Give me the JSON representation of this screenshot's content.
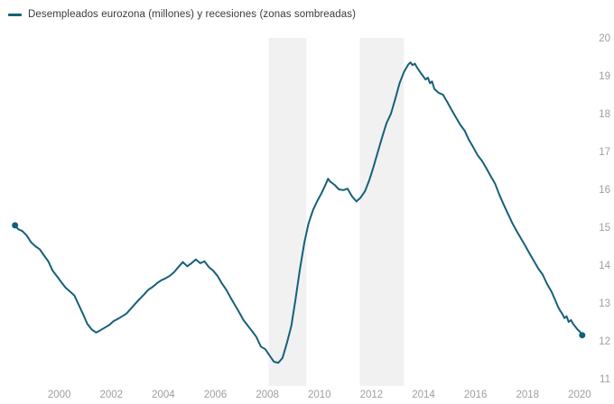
{
  "legend": {
    "label": "Desempleados eurozona (millones) y recesiones (zonas sombreadas)"
  },
  "colors": {
    "line": "#15607a",
    "recession_band": "#f1f1f1",
    "tick_text": "#9e9e9e",
    "legend_text": "#3a3a3a",
    "background": "#ffffff"
  },
  "chart_data": {
    "type": "line",
    "title": "Desempleados eurozona (millones) y recesiones (zonas sombreadas)",
    "xlabel": "",
    "ylabel": "",
    "grid": false,
    "legend_position": "top-left",
    "y_axis_side": "right",
    "xlim": [
      1998.0,
      2020.35
    ],
    "ylim": [
      11,
      20
    ],
    "x_ticks": [
      2000,
      2002,
      2004,
      2006,
      2008,
      2010,
      2012,
      2014,
      2016,
      2018,
      2020
    ],
    "x_tick_labels": [
      "2000",
      "2002",
      "2004",
      "2006",
      "2008",
      "2010",
      "2012",
      "2014",
      "2016",
      "2018",
      "2020"
    ],
    "y_ticks": [
      20,
      19,
      18,
      17,
      16,
      15,
      14,
      13,
      12,
      11
    ],
    "y_tick_labels": [
      "20",
      "19",
      "18",
      "17",
      "16",
      "15",
      "14",
      "13",
      "12",
      "11"
    ],
    "recessions": [
      {
        "start": 2008.05,
        "end": 2009.5
      },
      {
        "start": 2011.55,
        "end": 2013.25
      }
    ],
    "endpoint_markers": true,
    "series": [
      {
        "name": "Desempleados eurozona (millones)",
        "points": [
          [
            1998.3,
            15.05
          ],
          [
            1998.42,
            14.95
          ],
          [
            1998.58,
            14.9
          ],
          [
            1998.75,
            14.78
          ],
          [
            1998.92,
            14.6
          ],
          [
            1999.08,
            14.5
          ],
          [
            1999.25,
            14.42
          ],
          [
            1999.42,
            14.25
          ],
          [
            1999.58,
            14.1
          ],
          [
            1999.75,
            13.85
          ],
          [
            1999.92,
            13.7
          ],
          [
            2000.08,
            13.55
          ],
          [
            2000.25,
            13.4
          ],
          [
            2000.42,
            13.3
          ],
          [
            2000.58,
            13.2
          ],
          [
            2000.75,
            12.95
          ],
          [
            2000.92,
            12.7
          ],
          [
            2001.08,
            12.45
          ],
          [
            2001.25,
            12.3
          ],
          [
            2001.42,
            12.22
          ],
          [
            2001.58,
            12.28
          ],
          [
            2001.75,
            12.35
          ],
          [
            2001.92,
            12.42
          ],
          [
            2002.08,
            12.52
          ],
          [
            2002.25,
            12.58
          ],
          [
            2002.42,
            12.65
          ],
          [
            2002.58,
            12.72
          ],
          [
            2002.75,
            12.85
          ],
          [
            2002.92,
            12.98
          ],
          [
            2003.08,
            13.1
          ],
          [
            2003.25,
            13.22
          ],
          [
            2003.42,
            13.35
          ],
          [
            2003.58,
            13.42
          ],
          [
            2003.75,
            13.52
          ],
          [
            2003.92,
            13.6
          ],
          [
            2004.08,
            13.65
          ],
          [
            2004.25,
            13.72
          ],
          [
            2004.42,
            13.82
          ],
          [
            2004.58,
            13.95
          ],
          [
            2004.75,
            14.08
          ],
          [
            2004.92,
            13.97
          ],
          [
            2005.08,
            14.05
          ],
          [
            2005.25,
            14.15
          ],
          [
            2005.42,
            14.05
          ],
          [
            2005.58,
            14.1
          ],
          [
            2005.75,
            13.95
          ],
          [
            2005.92,
            13.85
          ],
          [
            2006.08,
            13.72
          ],
          [
            2006.25,
            13.52
          ],
          [
            2006.42,
            13.35
          ],
          [
            2006.58,
            13.15
          ],
          [
            2006.75,
            12.95
          ],
          [
            2006.92,
            12.75
          ],
          [
            2007.08,
            12.55
          ],
          [
            2007.25,
            12.4
          ],
          [
            2007.42,
            12.25
          ],
          [
            2007.58,
            12.1
          ],
          [
            2007.75,
            11.85
          ],
          [
            2007.92,
            11.78
          ],
          [
            2008.08,
            11.62
          ],
          [
            2008.25,
            11.45
          ],
          [
            2008.42,
            11.42
          ],
          [
            2008.58,
            11.55
          ],
          [
            2008.75,
            11.95
          ],
          [
            2008.92,
            12.4
          ],
          [
            2009.08,
            13.1
          ],
          [
            2009.25,
            13.9
          ],
          [
            2009.42,
            14.6
          ],
          [
            2009.58,
            15.1
          ],
          [
            2009.75,
            15.45
          ],
          [
            2009.92,
            15.7
          ],
          [
            2010.08,
            15.9
          ],
          [
            2010.25,
            16.15
          ],
          [
            2010.33,
            16.28
          ],
          [
            2010.42,
            16.2
          ],
          [
            2010.58,
            16.12
          ],
          [
            2010.75,
            16.0
          ],
          [
            2010.92,
            15.98
          ],
          [
            2011.08,
            16.02
          ],
          [
            2011.25,
            15.82
          ],
          [
            2011.42,
            15.68
          ],
          [
            2011.58,
            15.78
          ],
          [
            2011.75,
            15.95
          ],
          [
            2011.92,
            16.25
          ],
          [
            2012.08,
            16.6
          ],
          [
            2012.25,
            17.0
          ],
          [
            2012.42,
            17.4
          ],
          [
            2012.58,
            17.75
          ],
          [
            2012.75,
            18.0
          ],
          [
            2012.92,
            18.4
          ],
          [
            2013.08,
            18.8
          ],
          [
            2013.25,
            19.1
          ],
          [
            2013.42,
            19.3
          ],
          [
            2013.5,
            19.35
          ],
          [
            2013.58,
            19.28
          ],
          [
            2013.67,
            19.32
          ],
          [
            2013.75,
            19.22
          ],
          [
            2013.92,
            19.05
          ],
          [
            2014.08,
            18.9
          ],
          [
            2014.17,
            18.95
          ],
          [
            2014.25,
            18.8
          ],
          [
            2014.33,
            18.85
          ],
          [
            2014.42,
            18.65
          ],
          [
            2014.58,
            18.55
          ],
          [
            2014.75,
            18.5
          ],
          [
            2014.92,
            18.3
          ],
          [
            2015.08,
            18.1
          ],
          [
            2015.25,
            17.9
          ],
          [
            2015.42,
            17.7
          ],
          [
            2015.58,
            17.55
          ],
          [
            2015.75,
            17.3
          ],
          [
            2015.92,
            17.1
          ],
          [
            2016.08,
            16.9
          ],
          [
            2016.25,
            16.75
          ],
          [
            2016.42,
            16.55
          ],
          [
            2016.58,
            16.35
          ],
          [
            2016.75,
            16.15
          ],
          [
            2016.92,
            15.85
          ],
          [
            2017.08,
            15.6
          ],
          [
            2017.25,
            15.35
          ],
          [
            2017.42,
            15.1
          ],
          [
            2017.58,
            14.9
          ],
          [
            2017.75,
            14.7
          ],
          [
            2017.92,
            14.5
          ],
          [
            2018.08,
            14.3
          ],
          [
            2018.25,
            14.1
          ],
          [
            2018.42,
            13.9
          ],
          [
            2018.58,
            13.75
          ],
          [
            2018.75,
            13.5
          ],
          [
            2018.92,
            13.3
          ],
          [
            2019.08,
            13.05
          ],
          [
            2019.17,
            12.9
          ],
          [
            2019.25,
            12.8
          ],
          [
            2019.33,
            12.72
          ],
          [
            2019.42,
            12.6
          ],
          [
            2019.5,
            12.65
          ],
          [
            2019.58,
            12.5
          ],
          [
            2019.67,
            12.55
          ],
          [
            2019.75,
            12.45
          ],
          [
            2019.92,
            12.3
          ],
          [
            2020.0,
            12.25
          ],
          [
            2020.1,
            12.15
          ]
        ]
      }
    ]
  }
}
